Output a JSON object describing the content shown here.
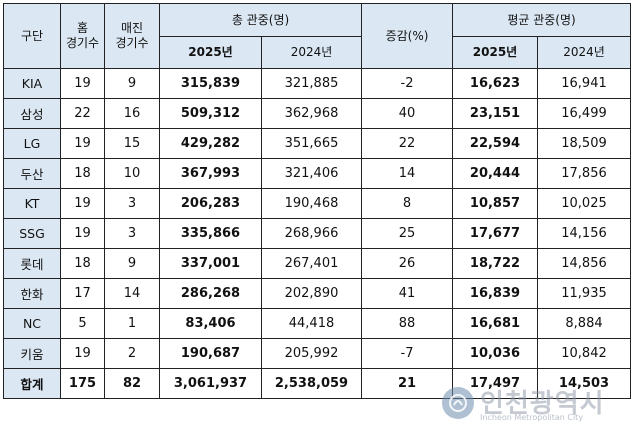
{
  "header": {
    "col_team": "구단",
    "col_home_line1": "홈",
    "col_home_line2": "경기수",
    "col_sellout_line1": "매진",
    "col_sellout_line2": "경기수",
    "col_total": "총 관중(명)",
    "col_change": "증감(%)",
    "col_avg": "평균 관중(명)",
    "year_2025": "2025년",
    "year_2024": "2024년"
  },
  "rows": [
    {
      "team": "KIA",
      "home": "19",
      "sellout": "9",
      "total_2025": "315,839",
      "total_2024": "321,885",
      "change": "-2",
      "avg_2025": "16,623",
      "avg_2024": "16,941"
    },
    {
      "team": "삼성",
      "home": "22",
      "sellout": "16",
      "total_2025": "509,312",
      "total_2024": "362,968",
      "change": "40",
      "avg_2025": "23,151",
      "avg_2024": "16,499"
    },
    {
      "team": "LG",
      "home": "19",
      "sellout": "15",
      "total_2025": "429,282",
      "total_2024": "351,665",
      "change": "22",
      "avg_2025": "22,594",
      "avg_2024": "18,509"
    },
    {
      "team": "두산",
      "home": "18",
      "sellout": "10",
      "total_2025": "367,993",
      "total_2024": "321,406",
      "change": "14",
      "avg_2025": "20,444",
      "avg_2024": "17,856"
    },
    {
      "team": "KT",
      "home": "19",
      "sellout": "3",
      "total_2025": "206,283",
      "total_2024": "190,468",
      "change": "8",
      "avg_2025": "10,857",
      "avg_2024": "10,025"
    },
    {
      "team": "SSG",
      "home": "19",
      "sellout": "3",
      "total_2025": "335,866",
      "total_2024": "268,966",
      "change": "25",
      "avg_2025": "17,677",
      "avg_2024": "14,156"
    },
    {
      "team": "롯데",
      "home": "18",
      "sellout": "9",
      "total_2025": "337,001",
      "total_2024": "267,401",
      "change": "26",
      "avg_2025": "18,722",
      "avg_2024": "14,856"
    },
    {
      "team": "한화",
      "home": "17",
      "sellout": "14",
      "total_2025": "286,268",
      "total_2024": "202,890",
      "change": "41",
      "avg_2025": "16,839",
      "avg_2024": "11,935"
    },
    {
      "team": "NC",
      "home": "5",
      "sellout": "1",
      "total_2025": "83,406",
      "total_2024": "44,418",
      "change": "88",
      "avg_2025": "16,681",
      "avg_2024": "8,884"
    },
    {
      "team": "키움",
      "home": "19",
      "sellout": "2",
      "total_2025": "190,687",
      "total_2024": "205,992",
      "change": "-7",
      "avg_2025": "10,036",
      "avg_2024": "10,842"
    }
  ],
  "total_row": {
    "team": "합계",
    "home": "175",
    "sellout": "82",
    "total_2025": "3,061,937",
    "total_2024": "2,538,059",
    "change": "21",
    "avg_2025": "17,497",
    "avg_2024": "14,503"
  },
  "watermark": {
    "text": "인천광역시",
    "subtext": "Incheon Metropolitan City",
    "icon": "city-emblem-icon"
  },
  "colors": {
    "header_bg": "#dbe8f4",
    "border": "#222222"
  }
}
